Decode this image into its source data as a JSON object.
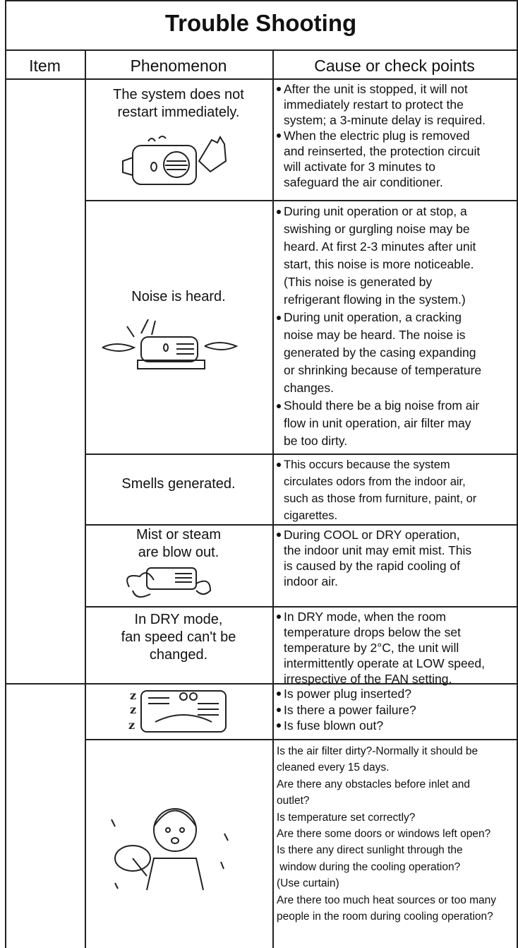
{
  "title": "Trouble Shooting",
  "header": [
    "Item",
    "Phenomenon",
    "Cause or check points"
  ],
  "rows": [
    {
      "phenomenon": [
        "The system does not",
        "restart immediately."
      ],
      "causes": [
        [
          "After the unit is stopped, it will not",
          "immediately restart to protect the",
          "system; a 3-minute delay is required."
        ],
        [
          "When the electric plug is removed",
          "and reinserted, the protection circuit",
          "will activate for 3 minutes to",
          "safeguard the air conditioner."
        ]
      ]
    },
    {
      "phenomenon": [
        "Noise is heard."
      ],
      "causes": [
        [
          "During unit operation or at stop, a",
          "swishing or gurgling noise may be",
          "heard. At first 2-3 minutes after unit",
          "start, this noise is more noticeable.",
          "(This noise is generated by",
          "refrigerant flowing in the system.)"
        ],
        [
          "During unit operation, a cracking",
          "noise may be heard. The noise is",
          "generated by the casing expanding",
          "or shrinking because of temperature",
          "changes."
        ],
        [
          "Should there be a big noise from air",
          "flow in unit operation, air filter may",
          "be too dirty."
        ]
      ]
    },
    {
      "phenomenon": [
        "Smells generated."
      ],
      "causes": [
        [
          "This occurs because the system",
          "circulates odors from the indoor air,",
          "such as those from furniture, paint, or",
          "cigarettes."
        ]
      ]
    },
    {
      "phenomenon": [
        "Mist or steam",
        "are blow out."
      ],
      "causes": [
        [
          "During COOL or DRY operation,",
          "the indoor unit may emit mist. This",
          "is caused by the rapid cooling of",
          "indoor air."
        ]
      ]
    },
    {
      "phenomenon": [
        "In DRY mode,",
        "fan speed can't be",
        "changed."
      ],
      "causes": [
        [
          "In DRY mode, when the room",
          "temperature drops below the set",
          "temperature by 2°C, the unit will",
          "intermittently operate at LOW speed,",
          "irrespective of the FAN setting."
        ]
      ]
    },
    {
      "phenomenon": [],
      "causes": [
        [
          "Is power plug inserted?"
        ],
        [
          "Is there a power failure?"
        ],
        [
          "Is fuse blown out?"
        ]
      ]
    },
    {
      "phenomenon": [],
      "notes": [
        "Is the air filter dirty?-Normally it should be",
        "cleaned every 15 days.",
        "Are there any obstacles before inlet and",
        "outlet?",
        "Is temperature set correctly?",
        "Are there some doors or windows left open?",
        "Is there any direct sunlight through the",
        " window during the cooling operation?",
        "(Use curtain)",
        "Are there too much heat sources or too many",
        "people in the room during cooling operation?"
      ]
    }
  ]
}
